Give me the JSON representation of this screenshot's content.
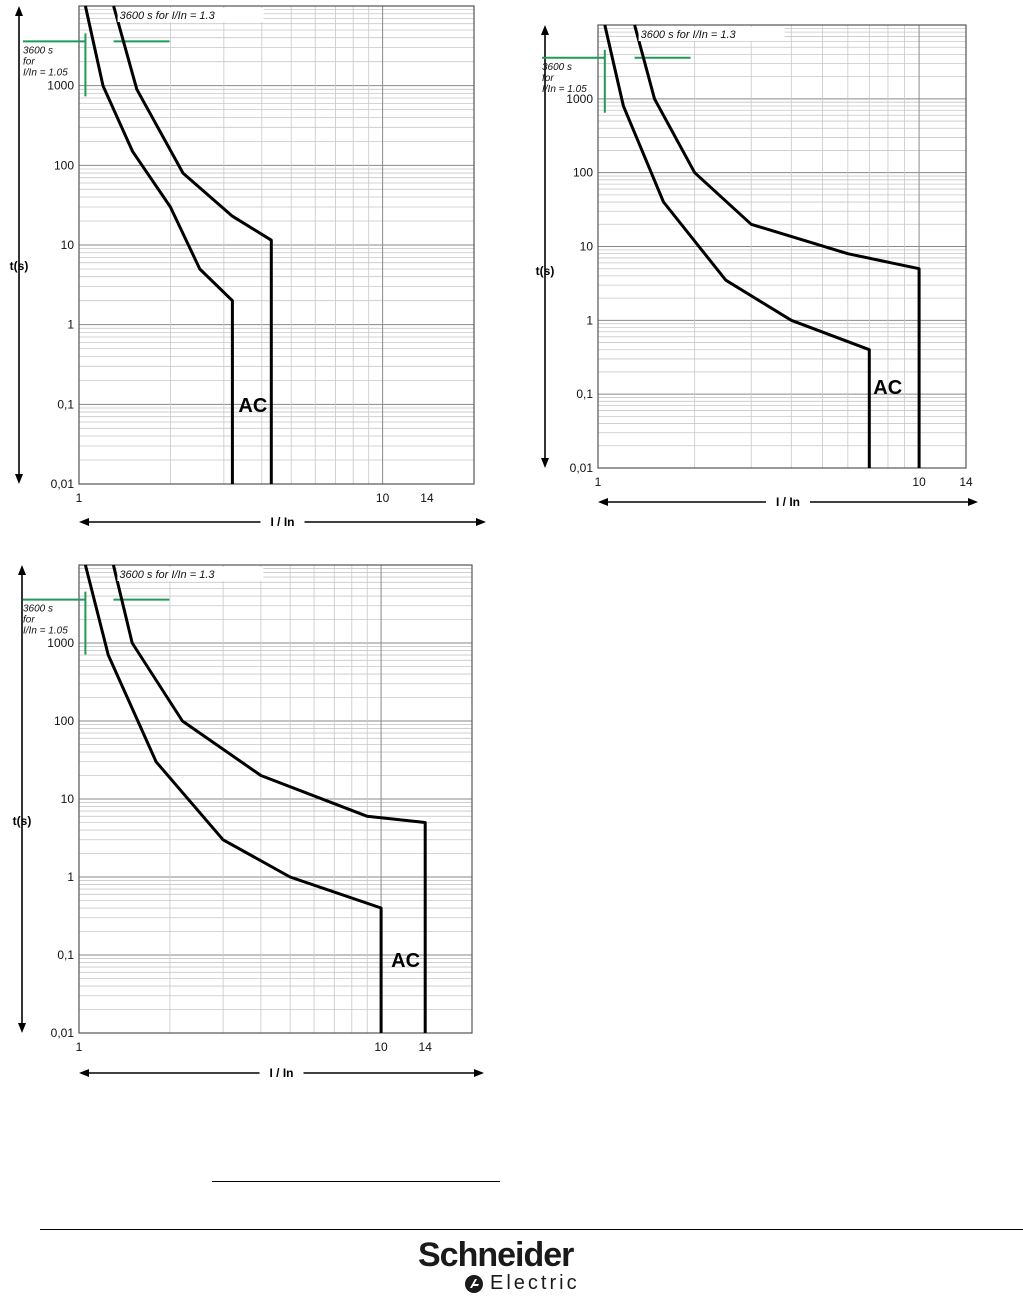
{
  "chart_data": [
    {
      "type": "line",
      "title": "",
      "xlabel": "I / In",
      "ylabel": "t(s)",
      "x_scale": "log",
      "y_scale": "log",
      "xlim": [
        1,
        20
      ],
      "ylim": [
        0.01,
        10000
      ],
      "x_tick_labels": [
        {
          "v": 1,
          "t": "1"
        },
        {
          "v": 10,
          "t": "10"
        },
        {
          "v": 14,
          "t": "14"
        }
      ],
      "y_tick_labels": [
        {
          "v": 0.01,
          "t": "0,01"
        },
        {
          "v": 0.1,
          "t": "0,1"
        },
        {
          "v": 1,
          "t": "1"
        },
        {
          "v": 10,
          "t": "10"
        },
        {
          "v": 100,
          "t": "100"
        },
        {
          "v": 1000,
          "t": "1000"
        }
      ],
      "annotations": {
        "upper_label": "3600 s for I/In = 1.3",
        "lower_label": [
          "3600 s",
          "for",
          "I/In = 1.05"
        ],
        "curve_label": "AC"
      },
      "annotation_points": {
        "upper": {
          "x": 1.3,
          "y": 3600
        },
        "lower": {
          "x": 1.05,
          "y": 3600
        }
      },
      "label_anchor": {
        "x": 3.35,
        "y": 0.08
      },
      "series": [
        {
          "points": [
            [
              1.05,
              10000
            ],
            [
              1.2,
              1000
            ],
            [
              1.5,
              150
            ],
            [
              2.0,
              30
            ],
            [
              2.5,
              5
            ],
            [
              3.2,
              2.0
            ],
            [
              3.2,
              0.01
            ]
          ]
        },
        {
          "points": [
            [
              1.3,
              10000
            ],
            [
              1.55,
              900
            ],
            [
              2.2,
              80
            ],
            [
              3.2,
              23
            ],
            [
              4.3,
              11.5
            ],
            [
              4.3,
              0.01
            ]
          ]
        }
      ]
    },
    {
      "type": "line",
      "title": "",
      "xlabel": "I / In",
      "ylabel": "t(s)",
      "x_scale": "log",
      "y_scale": "log",
      "xlim": [
        1,
        14
      ],
      "ylim": [
        0.01,
        10000
      ],
      "x_tick_labels": [
        {
          "v": 1,
          "t": "1"
        },
        {
          "v": 10,
          "t": "10"
        },
        {
          "v": 14,
          "t": "14"
        }
      ],
      "y_tick_labels": [
        {
          "v": 0.01,
          "t": "0,01"
        },
        {
          "v": 0.1,
          "t": "0,1"
        },
        {
          "v": 1,
          "t": "1"
        },
        {
          "v": 10,
          "t": "10"
        },
        {
          "v": 100,
          "t": "100"
        },
        {
          "v": 1000,
          "t": "1000"
        }
      ],
      "annotations": {
        "upper_label": "3600 s for I/In = 1.3",
        "lower_label": [
          "3600 s",
          "for",
          "I/In = 1.05"
        ],
        "curve_label": "AC"
      },
      "annotation_points": {
        "upper": {
          "x": 1.3,
          "y": 3600
        },
        "lower": {
          "x": 1.05,
          "y": 3600
        }
      },
      "label_anchor": {
        "x": 7.2,
        "y": 0.1
      },
      "series": [
        {
          "points": [
            [
              1.05,
              10000
            ],
            [
              1.2,
              800
            ],
            [
              1.6,
              40
            ],
            [
              2.5,
              3.5
            ],
            [
              4.0,
              1.0
            ],
            [
              7.0,
              0.4
            ],
            [
              7.0,
              0.01
            ]
          ]
        },
        {
          "points": [
            [
              1.3,
              10000
            ],
            [
              1.5,
              1000
            ],
            [
              2.0,
              100
            ],
            [
              3.0,
              20
            ],
            [
              6.0,
              8.0
            ],
            [
              10.0,
              5.0
            ],
            [
              10.0,
              0.01
            ]
          ]
        }
      ]
    },
    {
      "type": "line",
      "title": "",
      "xlabel": "I / In",
      "ylabel": "t(s)",
      "x_scale": "log",
      "y_scale": "log",
      "xlim": [
        1,
        20
      ],
      "ylim": [
        0.01,
        10000
      ],
      "x_tick_labels": [
        {
          "v": 1,
          "t": "1"
        },
        {
          "v": 10,
          "t": "10"
        },
        {
          "v": 14,
          "t": "14"
        }
      ],
      "y_tick_labels": [
        {
          "v": 0.01,
          "t": "0,01"
        },
        {
          "v": 0.1,
          "t": "0,1"
        },
        {
          "v": 1,
          "t": "1"
        },
        {
          "v": 10,
          "t": "10"
        },
        {
          "v": 100,
          "t": "100"
        },
        {
          "v": 1000,
          "t": "1000"
        }
      ],
      "annotations": {
        "upper_label": "3600 s for I/In = 1.3",
        "lower_label": [
          "3600 s",
          "for",
          "I/In = 1.05"
        ],
        "curve_label": "AC"
      },
      "annotation_points": {
        "upper": {
          "x": 1.3,
          "y": 3600
        },
        "lower": {
          "x": 1.05,
          "y": 3600
        }
      },
      "label_anchor": {
        "x": 10.8,
        "y": 0.07
      },
      "series": [
        {
          "points": [
            [
              1.05,
              10000
            ],
            [
              1.25,
              700
            ],
            [
              1.8,
              30
            ],
            [
              3.0,
              3.0
            ],
            [
              5.0,
              1.0
            ],
            [
              10.0,
              0.4
            ],
            [
              10.0,
              0.01
            ]
          ]
        },
        {
          "points": [
            [
              1.3,
              10000
            ],
            [
              1.5,
              1000
            ],
            [
              2.2,
              100
            ],
            [
              4.0,
              20
            ],
            [
              9.0,
              6.0
            ],
            [
              14.0,
              5.0
            ],
            [
              14.0,
              0.01
            ]
          ]
        }
      ]
    }
  ],
  "footer": {
    "logo_text": "Schneider",
    "logo_sub": "Electric"
  }
}
